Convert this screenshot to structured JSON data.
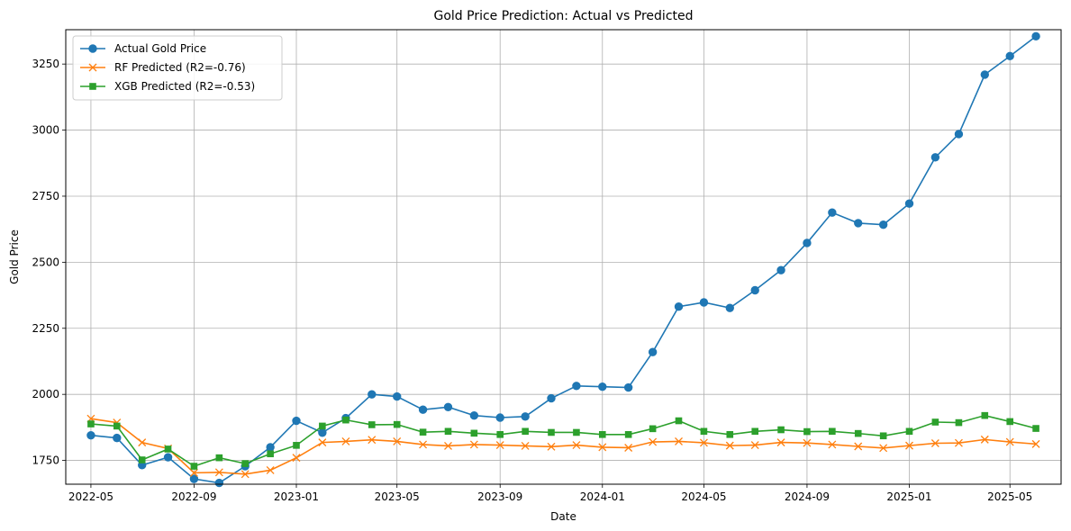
{
  "chart_data": {
    "type": "line",
    "title": "Gold Price Prediction: Actual vs Predicted",
    "xlabel": "Date",
    "ylabel": "Gold Price",
    "grid": true,
    "legend_position": "top-left",
    "x": [
      "2022-05",
      "2022-06",
      "2022-07",
      "2022-08",
      "2022-09",
      "2022-10",
      "2022-11",
      "2022-12",
      "2023-01",
      "2023-02",
      "2023-03",
      "2023-04",
      "2023-05",
      "2023-06",
      "2023-07",
      "2023-08",
      "2023-09",
      "2023-10",
      "2023-11",
      "2023-12",
      "2024-01",
      "2024-02",
      "2024-03",
      "2024-04",
      "2024-05",
      "2024-06",
      "2024-07",
      "2024-08",
      "2024-09",
      "2024-10",
      "2024-11",
      "2024-12",
      "2025-01",
      "2025-02",
      "2025-03",
      "2025-04",
      "2025-05",
      "2025-06"
    ],
    "xticks": [
      "2022-05",
      "2022-09",
      "2023-01",
      "2023-05",
      "2023-09",
      "2024-01",
      "2024-05",
      "2024-09",
      "2025-01",
      "2025-05"
    ],
    "xlim": [
      "2022-04-01",
      "2025-07-01"
    ],
    "yticks": [
      1750,
      2000,
      2250,
      2500,
      2750,
      3000,
      3250
    ],
    "ylim": [
      1660,
      3380
    ],
    "series": [
      {
        "name": "Actual Gold Price",
        "color": "#1f77b4",
        "marker": "circle",
        "values": [
          1845,
          1835,
          1732,
          1762,
          1680,
          1665,
          1728,
          1800,
          1900,
          1855,
          1910,
          2000,
          1992,
          1942,
          1952,
          1920,
          1912,
          1916,
          1985,
          2032,
          2029,
          2026,
          2160,
          2332,
          2348,
          2327,
          2394,
          2470,
          2573,
          2688,
          2648,
          2642,
          2722,
          2897,
          2985,
          3210,
          3280,
          3355
        ]
      },
      {
        "name": "RF Predicted (R2=-0.76)",
        "color": "#ff7f0e",
        "marker": "x",
        "values": [
          1908,
          1893,
          1818,
          1795,
          1703,
          1705,
          1698,
          1713,
          1760,
          1818,
          1822,
          1828,
          1822,
          1810,
          1805,
          1810,
          1808,
          1805,
          1802,
          1808,
          1800,
          1798,
          1820,
          1822,
          1817,
          1806,
          1808,
          1818,
          1816,
          1810,
          1803,
          1797,
          1806,
          1815,
          1816,
          1829,
          1820,
          1812
        ]
      },
      {
        "name": "XGB Predicted (R2=-0.53)",
        "color": "#2ca02c",
        "marker": "square",
        "values": [
          1888,
          1880,
          1752,
          1793,
          1728,
          1760,
          1738,
          1775,
          1807,
          1880,
          1903,
          1885,
          1886,
          1857,
          1860,
          1853,
          1848,
          1860,
          1856,
          1856,
          1848,
          1848,
          1870,
          1900,
          1860,
          1848,
          1860,
          1866,
          1859,
          1860,
          1852,
          1843,
          1860,
          1895,
          1893,
          1920,
          1897,
          1871
        ]
      }
    ]
  }
}
